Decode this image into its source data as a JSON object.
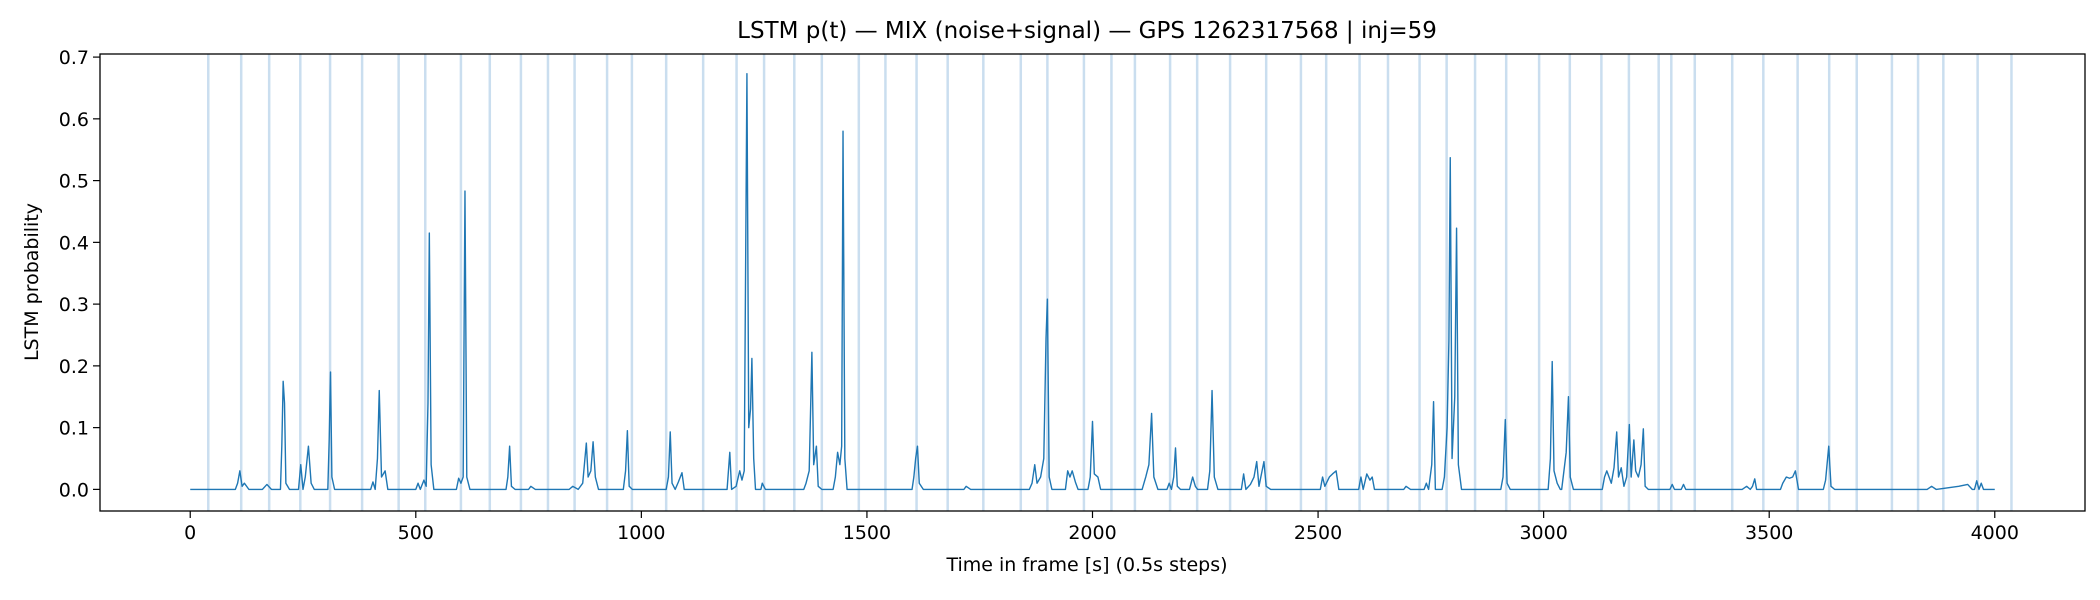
{
  "chart_data": {
    "type": "line",
    "title": "LSTM p(t) — MIX (noise+signal) — GPS 1262317568 | inj=59",
    "xlabel": "Time in frame [s] (0.5s steps)",
    "ylabel": "LSTM probability",
    "xlim": [
      -200,
      4200
    ],
    "ylim": [
      -0.035,
      0.705
    ],
    "x_ticks": [
      0,
      500,
      1000,
      1500,
      2000,
      2500,
      3000,
      3500,
      4000
    ],
    "y_ticks": [
      0.0,
      0.1,
      0.2,
      0.3,
      0.4,
      0.5,
      0.6,
      0.7
    ],
    "x_tick_labels": [
      "0",
      "500",
      "1000",
      "1500",
      "2000",
      "2500",
      "3000",
      "3500",
      "4000"
    ],
    "y_tick_labels": [
      "0.0",
      "0.1",
      "0.2",
      "0.3",
      "0.4",
      "0.5",
      "0.6",
      "0.7"
    ],
    "grid": false,
    "line_color": "#1f77b4",
    "injection_line_color": "#a6c8e4",
    "injection_times": [
      40,
      113,
      175,
      244,
      310,
      381,
      462,
      521,
      600,
      664,
      733,
      793,
      852,
      924,
      979,
      1055,
      1137,
      1211,
      1272,
      1339,
      1400,
      1482,
      1541,
      1610,
      1679,
      1758,
      1841,
      1900,
      1981,
      2042,
      2094,
      2172,
      2232,
      2305,
      2385,
      2462,
      2518,
      2592,
      2655,
      2725,
      2785,
      2848,
      2917,
      2990,
      3058,
      3128,
      3189,
      3255,
      3283,
      3335,
      3418,
      3487,
      3563,
      3633,
      3694,
      3772,
      3830,
      3886,
      3962,
      4037
    ],
    "series": [
      {
        "values": [
          [
            0,
            0.0
          ],
          [
            100,
            0.0
          ],
          [
            105,
            0.01
          ],
          [
            110,
            0.03
          ],
          [
            115,
            0.005
          ],
          [
            120,
            0.01
          ],
          [
            130,
            0.0
          ],
          [
            160,
            0.0
          ],
          [
            170,
            0.008
          ],
          [
            180,
            0.0
          ],
          [
            200,
            0.0
          ],
          [
            203,
            0.07
          ],
          [
            206,
            0.175
          ],
          [
            209,
            0.14
          ],
          [
            212,
            0.01
          ],
          [
            220,
            0.0
          ],
          [
            240,
            0.0
          ],
          [
            245,
            0.04
          ],
          [
            250,
            0.0
          ],
          [
            255,
            0.02
          ],
          [
            262,
            0.07
          ],
          [
            268,
            0.01
          ],
          [
            275,
            0.0
          ],
          [
            305,
            0.0
          ],
          [
            308,
            0.08
          ],
          [
            311,
            0.19
          ],
          [
            314,
            0.02
          ],
          [
            320,
            0.0
          ],
          [
            400,
            0.0
          ],
          [
            405,
            0.012
          ],
          [
            410,
            0.0
          ],
          [
            415,
            0.05
          ],
          [
            419,
            0.16
          ],
          [
            424,
            0.02
          ],
          [
            432,
            0.03
          ],
          [
            438,
            0.0
          ],
          [
            500,
            0.0
          ],
          [
            505,
            0.01
          ],
          [
            510,
            0.0
          ],
          [
            518,
            0.015
          ],
          [
            523,
            0.005
          ],
          [
            527,
            0.14
          ],
          [
            530,
            0.415
          ],
          [
            534,
            0.04
          ],
          [
            540,
            0.0
          ],
          [
            590,
            0.0
          ],
          [
            595,
            0.018
          ],
          [
            600,
            0.01
          ],
          [
            605,
            0.02
          ],
          [
            609,
            0.483
          ],
          [
            613,
            0.02
          ],
          [
            620,
            0.0
          ],
          [
            700,
            0.0
          ],
          [
            704,
            0.02
          ],
          [
            708,
            0.07
          ],
          [
            712,
            0.005
          ],
          [
            720,
            0.0
          ],
          [
            750,
            0.0
          ],
          [
            755,
            0.005
          ],
          [
            765,
            0.0
          ],
          [
            840,
            0.0
          ],
          [
            848,
            0.005
          ],
          [
            860,
            0.0
          ],
          [
            870,
            0.01
          ],
          [
            878,
            0.075
          ],
          [
            882,
            0.02
          ],
          [
            888,
            0.03
          ],
          [
            893,
            0.077
          ],
          [
            898,
            0.02
          ],
          [
            905,
            0.0
          ],
          [
            960,
            0.0
          ],
          [
            965,
            0.03
          ],
          [
            969,
            0.095
          ],
          [
            973,
            0.005
          ],
          [
            980,
            0.0
          ],
          [
            1055,
            0.0
          ],
          [
            1060,
            0.02
          ],
          [
            1064,
            0.093
          ],
          [
            1068,
            0.01
          ],
          [
            1075,
            0.0
          ],
          [
            1082,
            0.012
          ],
          [
            1090,
            0.027
          ],
          [
            1095,
            0.0
          ],
          [
            1190,
            0.0
          ],
          [
            1196,
            0.06
          ],
          [
            1200,
            0.0
          ],
          [
            1210,
            0.005
          ],
          [
            1218,
            0.03
          ],
          [
            1223,
            0.015
          ],
          [
            1228,
            0.03
          ],
          [
            1234,
            0.673
          ],
          [
            1238,
            0.1
          ],
          [
            1242,
            0.13
          ],
          [
            1245,
            0.212
          ],
          [
            1249,
            0.05
          ],
          [
            1253,
            0.0
          ],
          [
            1265,
            0.0
          ],
          [
            1268,
            0.01
          ],
          [
            1275,
            0.0
          ],
          [
            1360,
            0.0
          ],
          [
            1365,
            0.01
          ],
          [
            1372,
            0.03
          ],
          [
            1378,
            0.222
          ],
          [
            1382,
            0.04
          ],
          [
            1388,
            0.07
          ],
          [
            1392,
            0.005
          ],
          [
            1400,
            0.0
          ],
          [
            1425,
            0.0
          ],
          [
            1430,
            0.02
          ],
          [
            1435,
            0.06
          ],
          [
            1440,
            0.04
          ],
          [
            1444,
            0.07
          ],
          [
            1447,
            0.58
          ],
          [
            1451,
            0.05
          ],
          [
            1456,
            0.0
          ],
          [
            1600,
            0.0
          ],
          [
            1604,
            0.02
          ],
          [
            1608,
            0.05
          ],
          [
            1612,
            0.07
          ],
          [
            1616,
            0.01
          ],
          [
            1625,
            0.0
          ],
          [
            1715,
            0.0
          ],
          [
            1720,
            0.005
          ],
          [
            1730,
            0.0
          ],
          [
            1860,
            0.0
          ],
          [
            1866,
            0.01
          ],
          [
            1872,
            0.04
          ],
          [
            1877,
            0.01
          ],
          [
            1885,
            0.02
          ],
          [
            1892,
            0.05
          ],
          [
            1897,
            0.245
          ],
          [
            1900,
            0.308
          ],
          [
            1904,
            0.02
          ],
          [
            1910,
            0.0
          ],
          [
            1940,
            0.0
          ],
          [
            1945,
            0.03
          ],
          [
            1950,
            0.02
          ],
          [
            1955,
            0.03
          ],
          [
            1962,
            0.012
          ],
          [
            1968,
            0.0
          ],
          [
            1990,
            0.0
          ],
          [
            1995,
            0.02
          ],
          [
            2000,
            0.11
          ],
          [
            2004,
            0.025
          ],
          [
            2012,
            0.02
          ],
          [
            2018,
            0.0
          ],
          [
            2110,
            0.0
          ],
          [
            2118,
            0.02
          ],
          [
            2125,
            0.04
          ],
          [
            2131,
            0.123
          ],
          [
            2136,
            0.02
          ],
          [
            2145,
            0.0
          ],
          [
            2165,
            0.0
          ],
          [
            2170,
            0.01
          ],
          [
            2175,
            0.0
          ],
          [
            2180,
            0.02
          ],
          [
            2184,
            0.067
          ],
          [
            2188,
            0.005
          ],
          [
            2195,
            0.0
          ],
          [
            2215,
            0.0
          ],
          [
            2222,
            0.02
          ],
          [
            2228,
            0.005
          ],
          [
            2233,
            0.0
          ],
          [
            2255,
            0.0
          ],
          [
            2260,
            0.03
          ],
          [
            2265,
            0.16
          ],
          [
            2270,
            0.02
          ],
          [
            2278,
            0.0
          ],
          [
            2330,
            0.0
          ],
          [
            2335,
            0.025
          ],
          [
            2340,
            0.0
          ],
          [
            2350,
            0.008
          ],
          [
            2358,
            0.02
          ],
          [
            2364,
            0.045
          ],
          [
            2369,
            0.005
          ],
          [
            2380,
            0.045
          ],
          [
            2385,
            0.005
          ],
          [
            2395,
            0.0
          ],
          [
            2505,
            0.0
          ],
          [
            2510,
            0.02
          ],
          [
            2515,
            0.005
          ],
          [
            2525,
            0.02
          ],
          [
            2532,
            0.025
          ],
          [
            2540,
            0.03
          ],
          [
            2546,
            0.0
          ],
          [
            2590,
            0.0
          ],
          [
            2595,
            0.02
          ],
          [
            2600,
            0.0
          ],
          [
            2608,
            0.025
          ],
          [
            2615,
            0.015
          ],
          [
            2620,
            0.02
          ],
          [
            2625,
            0.0
          ],
          [
            2690,
            0.0
          ],
          [
            2695,
            0.005
          ],
          [
            2705,
            0.0
          ],
          [
            2735,
            0.0
          ],
          [
            2740,
            0.01
          ],
          [
            2745,
            0.0
          ],
          [
            2752,
            0.04
          ],
          [
            2756,
            0.142
          ],
          [
            2760,
            0.0
          ],
          [
            2775,
            0.0
          ],
          [
            2780,
            0.02
          ],
          [
            2786,
            0.1
          ],
          [
            2790,
            0.24
          ],
          [
            2793,
            0.537
          ],
          [
            2797,
            0.05
          ],
          [
            2803,
            0.15
          ],
          [
            2807,
            0.423
          ],
          [
            2811,
            0.04
          ],
          [
            2818,
            0.0
          ],
          [
            2905,
            0.0
          ],
          [
            2910,
            0.02
          ],
          [
            2915,
            0.113
          ],
          [
            2919,
            0.01
          ],
          [
            2926,
            0.0
          ],
          [
            3010,
            0.0
          ],
          [
            3015,
            0.05
          ],
          [
            3019,
            0.207
          ],
          [
            3023,
            0.03
          ],
          [
            3030,
            0.01
          ],
          [
            3037,
            0.0
          ],
          [
            3040,
            0.0
          ],
          [
            3045,
            0.03
          ],
          [
            3050,
            0.06
          ],
          [
            3055,
            0.15
          ],
          [
            3059,
            0.02
          ],
          [
            3066,
            0.0
          ],
          [
            3130,
            0.0
          ],
          [
            3135,
            0.02
          ],
          [
            3140,
            0.03
          ],
          [
            3145,
            0.02
          ],
          [
            3150,
            0.01
          ],
          [
            3156,
            0.035
          ],
          [
            3162,
            0.093
          ],
          [
            3166,
            0.02
          ],
          [
            3172,
            0.035
          ],
          [
            3178,
            0.005
          ],
          [
            3184,
            0.02
          ],
          [
            3190,
            0.105
          ],
          [
            3194,
            0.02
          ],
          [
            3200,
            0.08
          ],
          [
            3204,
            0.03
          ],
          [
            3210,
            0.02
          ],
          [
            3216,
            0.04
          ],
          [
            3221,
            0.098
          ],
          [
            3225,
            0.005
          ],
          [
            3232,
            0.0
          ],
          [
            3280,
            0.0
          ],
          [
            3285,
            0.008
          ],
          [
            3290,
            0.0
          ],
          [
            3305,
            0.0
          ],
          [
            3310,
            0.008
          ],
          [
            3315,
            0.0
          ],
          [
            3440,
            0.0
          ],
          [
            3450,
            0.005
          ],
          [
            3458,
            0.0
          ],
          [
            3463,
            0.005
          ],
          [
            3468,
            0.017
          ],
          [
            3472,
            0.0
          ],
          [
            3525,
            0.0
          ],
          [
            3530,
            0.01
          ],
          [
            3538,
            0.02
          ],
          [
            3545,
            0.018
          ],
          [
            3552,
            0.02
          ],
          [
            3558,
            0.03
          ],
          [
            3565,
            0.0
          ],
          [
            3620,
            0.0
          ],
          [
            3625,
            0.015
          ],
          [
            3632,
            0.07
          ],
          [
            3637,
            0.005
          ],
          [
            3645,
            0.0
          ],
          [
            3850,
            0.0
          ],
          [
            3860,
            0.005
          ],
          [
            3870,
            0.0
          ],
          [
            3900,
            0.003
          ],
          [
            3920,
            0.005
          ],
          [
            3940,
            0.008
          ],
          [
            3950,
            0.0
          ],
          [
            3955,
            0.0
          ],
          [
            3960,
            0.014
          ],
          [
            3965,
            0.0
          ],
          [
            3970,
            0.01
          ],
          [
            3975,
            0.0
          ],
          [
            4000,
            0.0
          ]
        ]
      }
    ]
  }
}
